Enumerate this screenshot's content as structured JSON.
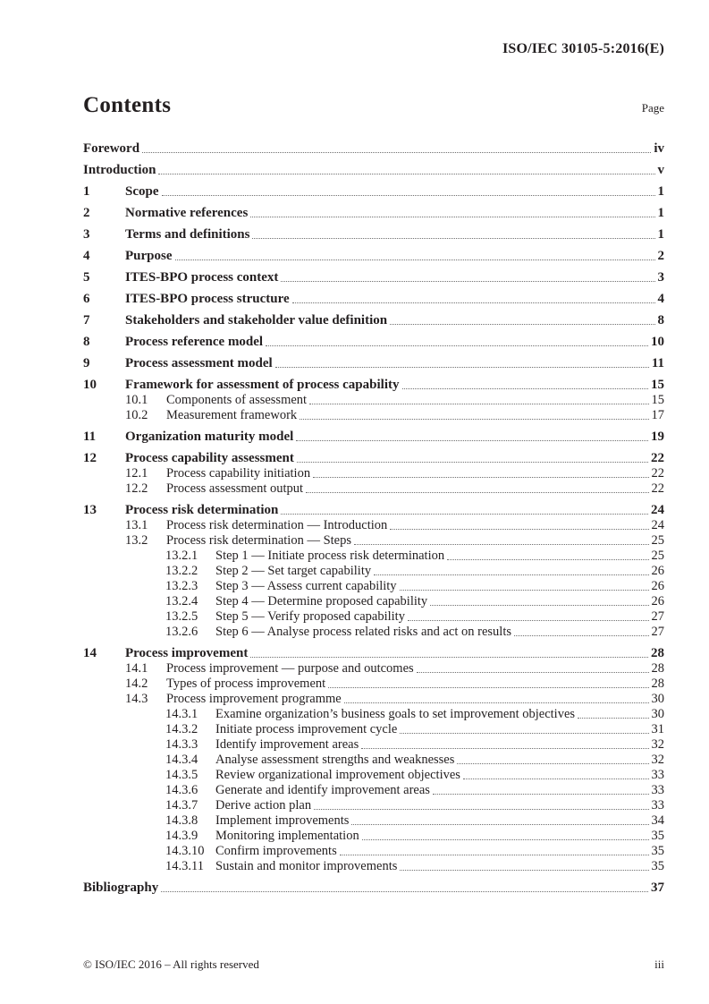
{
  "header": {
    "doc_ref": "ISO/IEC 30105-5:2016(E)"
  },
  "contents": {
    "title": "Contents",
    "page_label": "Page"
  },
  "toc": {
    "entries": [
      {
        "level": 1,
        "num": "",
        "title": "Foreword",
        "page": "iv",
        "bold": true
      },
      {
        "level": 1,
        "num": "",
        "title": "Introduction",
        "page": "v",
        "bold": true
      },
      {
        "level": 1,
        "num": "1",
        "title": "Scope",
        "page": "1",
        "bold": true
      },
      {
        "level": 1,
        "num": "2",
        "title": "Normative references",
        "page": "1",
        "bold": true
      },
      {
        "level": 1,
        "num": "3",
        "title": "Terms and definitions",
        "page": "1",
        "bold": true
      },
      {
        "level": 1,
        "num": "4",
        "title": "Purpose",
        "page": "2",
        "bold": true
      },
      {
        "level": 1,
        "num": "5",
        "title": "ITES-BPO process context",
        "page": "3",
        "bold": true
      },
      {
        "level": 1,
        "num": "6",
        "title": "ITES-BPO process structure",
        "page": "4",
        "bold": true
      },
      {
        "level": 1,
        "num": "7",
        "title": "Stakeholders and stakeholder value definition",
        "page": "8",
        "bold": true
      },
      {
        "level": 1,
        "num": "8",
        "title": "Process reference model",
        "page": "10",
        "bold": true
      },
      {
        "level": 1,
        "num": "9",
        "title": "Process assessment model",
        "page": "11",
        "bold": true
      },
      {
        "level": 1,
        "num": "10",
        "title": "Framework for assessment of process capability",
        "page": "15",
        "bold": true
      },
      {
        "level": 2,
        "num": "10.1",
        "title": "Components of assessment",
        "page": "15",
        "bold": false
      },
      {
        "level": 2,
        "num": "10.2",
        "title": "Measurement framework",
        "page": "17",
        "bold": false
      },
      {
        "level": 1,
        "num": "11",
        "title": "Organization maturity model",
        "page": "19",
        "bold": true
      },
      {
        "level": 1,
        "num": "12",
        "title": "Process capability assessment",
        "page": "22",
        "bold": true
      },
      {
        "level": 2,
        "num": "12.1",
        "title": "Process capability initiation",
        "page": "22",
        "bold": false
      },
      {
        "level": 2,
        "num": "12.2",
        "title": "Process assessment output",
        "page": "22",
        "bold": false
      },
      {
        "level": 1,
        "num": "13",
        "title": "Process risk determination",
        "page": "24",
        "bold": true
      },
      {
        "level": 2,
        "num": "13.1",
        "title": "Process risk determination — Introduction",
        "page": "24",
        "bold": false
      },
      {
        "level": 2,
        "num": "13.2",
        "title": "Process risk determination — Steps",
        "page": "25",
        "bold": false
      },
      {
        "level": 3,
        "num": "13.2.1",
        "title": "Step 1 — Initiate process risk determination",
        "page": "25",
        "bold": false
      },
      {
        "level": 3,
        "num": "13.2.2",
        "title": "Step 2 — Set target capability",
        "page": "26",
        "bold": false
      },
      {
        "level": 3,
        "num": "13.2.3",
        "title": "Step 3 — Assess current capability",
        "page": "26",
        "bold": false
      },
      {
        "level": 3,
        "num": "13.2.4",
        "title": "Step 4 — Determine proposed capability",
        "page": "26",
        "bold": false
      },
      {
        "level": 3,
        "num": "13.2.5",
        "title": "Step 5 — Verify proposed capability",
        "page": "27",
        "bold": false
      },
      {
        "level": 3,
        "num": "13.2.6",
        "title": "Step 6 — Analyse process related risks and act on results",
        "page": "27",
        "bold": false
      },
      {
        "level": 1,
        "num": "14",
        "title": "Process improvement",
        "page": "28",
        "bold": true
      },
      {
        "level": 2,
        "num": "14.1",
        "title": "Process improvement — purpose and outcomes",
        "page": "28",
        "bold": false
      },
      {
        "level": 2,
        "num": "14.2",
        "title": "Types of process improvement",
        "page": "28",
        "bold": false
      },
      {
        "level": 2,
        "num": "14.3",
        "title": "Process improvement programme",
        "page": "30",
        "bold": false
      },
      {
        "level": 3,
        "num": "14.3.1",
        "title": "Examine organization’s business goals to set improvement objectives",
        "page": "30",
        "bold": false
      },
      {
        "level": 3,
        "num": "14.3.2",
        "title": "Initiate process improvement cycle",
        "page": "31",
        "bold": false
      },
      {
        "level": 3,
        "num": "14.3.3",
        "title": "Identify improvement areas",
        "page": "32",
        "bold": false
      },
      {
        "level": 3,
        "num": "14.3.4",
        "title": "Analyse assessment strengths and weaknesses",
        "page": "32",
        "bold": false
      },
      {
        "level": 3,
        "num": "14.3.5",
        "title": "Review organizational improvement objectives",
        "page": "33",
        "bold": false
      },
      {
        "level": 3,
        "num": "14.3.6",
        "title": "Generate and identify improvement areas",
        "page": "33",
        "bold": false
      },
      {
        "level": 3,
        "num": "14.3.7",
        "title": "Derive action plan",
        "page": "33",
        "bold": false
      },
      {
        "level": 3,
        "num": "14.3.8",
        "title": "Implement improvements",
        "page": "34",
        "bold": false
      },
      {
        "level": 3,
        "num": "14.3.9",
        "title": "Monitoring implementation",
        "page": "35",
        "bold": false
      },
      {
        "level": 3,
        "num": "14.3.10",
        "title": "Confirm improvements",
        "page": "35",
        "bold": false
      },
      {
        "level": 3,
        "num": "14.3.11",
        "title": "Sustain and monitor improvements",
        "page": "35",
        "bold": false
      },
      {
        "level": 1,
        "num": "",
        "title": "Bibliography",
        "page": "37",
        "bold": true
      }
    ]
  },
  "footer": {
    "copyright": "© ISO/IEC 2016 – All rights reserved",
    "page_number": "iii"
  },
  "colors": {
    "text": "#231f20",
    "leader_dots": "#6f6f6f",
    "background": "#ffffff"
  }
}
